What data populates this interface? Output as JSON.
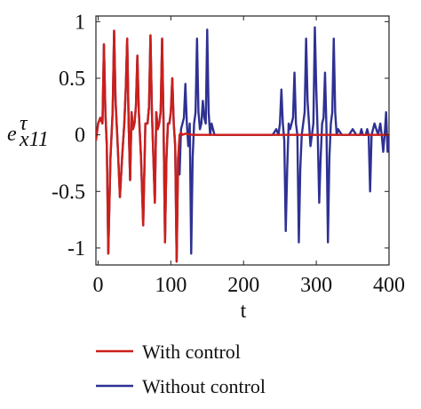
{
  "chart_data": {
    "type": "line",
    "xlabel": "t",
    "ylabel": {
      "base": "e",
      "superscript": "τ",
      "subscript": "x11"
    },
    "xlim": [
      -3,
      400
    ],
    "ylim": [
      -1.15,
      1.05
    ],
    "xticks": [
      0,
      100,
      200,
      300,
      400
    ],
    "xtick_labels": [
      "0",
      "100",
      "200",
      "300",
      "400"
    ],
    "yticks": [
      1,
      0.5,
      0,
      -0.5,
      -1
    ],
    "ytick_labels": [
      "1",
      "0.5",
      "0",
      "-0.5",
      "-1"
    ],
    "grid": false,
    "legend_position": "bottom",
    "series": [
      {
        "name": "Without control",
        "color": "#2e3192",
        "x": [
          -3,
          0,
          3,
          6,
          8,
          10,
          12,
          14,
          17,
          20,
          22,
          24,
          27,
          30,
          33,
          36,
          38,
          40,
          42,
          44,
          46,
          48,
          50,
          52,
          54,
          56,
          59,
          62,
          65,
          68,
          70,
          72,
          74,
          76,
          78,
          80,
          82,
          84,
          86,
          88,
          90,
          92,
          94,
          96,
          98,
          100,
          102,
          104,
          106,
          108,
          110,
          112,
          114,
          116,
          118,
          120,
          122,
          124,
          126,
          128,
          130,
          132,
          134,
          136,
          138,
          140,
          142,
          144,
          146,
          148,
          150,
          152,
          154,
          156,
          158,
          160,
          162,
          170,
          180,
          200,
          220,
          230,
          240,
          245,
          248,
          250,
          252,
          254,
          256,
          258,
          260,
          262,
          264,
          266,
          268,
          270,
          272,
          274,
          276,
          278,
          280,
          282,
          284,
          286,
          288,
          290,
          292,
          294,
          296,
          298,
          300,
          302,
          304,
          306,
          308,
          310,
          312,
          314,
          316,
          318,
          320,
          322,
          324,
          326,
          328,
          330,
          335,
          340,
          345,
          350,
          355,
          360,
          362,
          364,
          366,
          368,
          370,
          372,
          374,
          376,
          378,
          380,
          385,
          388,
          390,
          392,
          394,
          396,
          398,
          400
        ],
        "y": [
          -0.05,
          0.1,
          0.15,
          0.1,
          0.8,
          0.2,
          -0.1,
          -1.05,
          -0.2,
          0.2,
          0.92,
          0.3,
          -0.1,
          -0.55,
          -0.2,
          0.1,
          0.4,
          0.85,
          0.1,
          -0.4,
          0.2,
          0.05,
          0.1,
          0.25,
          0.7,
          0.2,
          -0.2,
          -0.8,
          0.1,
          0.1,
          0.25,
          0.88,
          0.2,
          -0.2,
          -0.6,
          0.2,
          0.05,
          0.1,
          0.2,
          0.85,
          0.1,
          -0.95,
          -0.2,
          0.1,
          0.1,
          0.2,
          0.5,
          0.1,
          -0.1,
          -1.12,
          -0.2,
          -0.35,
          0.05,
          0.1,
          0.15,
          0.45,
          0.1,
          -0.1,
          0.1,
          -1.05,
          -0.2,
          0.1,
          0.2,
          0.85,
          0.2,
          0.05,
          0.1,
          0.3,
          0.15,
          0.1,
          0.93,
          0.2,
          0.0,
          0.1,
          0.05,
          0.0,
          0.0,
          0.0,
          0.0,
          0.0,
          0.0,
          0.0,
          0.0,
          0.05,
          0.0,
          0.1,
          0.4,
          0.1,
          -0.05,
          -0.85,
          -0.3,
          0.1,
          0.05,
          0.1,
          0.15,
          0.55,
          0.1,
          0.0,
          -0.95,
          -0.3,
          0.0,
          0.1,
          0.2,
          0.85,
          0.3,
          0.1,
          -0.1,
          0.0,
          0.1,
          0.95,
          0.4,
          0.0,
          -0.6,
          -0.2,
          0.1,
          0.15,
          0.55,
          0.05,
          -0.95,
          -0.2,
          0.1,
          0.2,
          0.85,
          0.2,
          0.0,
          0.05,
          0.0,
          0.0,
          0.0,
          0.05,
          0.0,
          0.0,
          0.05,
          0.0,
          0.0,
          0.0,
          0.05,
          0.0,
          -0.5,
          0.0,
          0.05,
          0.1,
          0.0,
          0.1,
          0.0,
          -0.15,
          0.0,
          0.2,
          -0.15,
          0.0
        ],
        "note": ""
      },
      {
        "name": "With control",
        "color": "#cc1f1a",
        "x": [
          -3,
          0,
          3,
          6,
          8,
          10,
          12,
          14,
          17,
          20,
          22,
          24,
          27,
          30,
          33,
          36,
          38,
          40,
          42,
          44,
          46,
          48,
          50,
          52,
          54,
          56,
          59,
          62,
          65,
          68,
          70,
          72,
          74,
          76,
          78,
          80,
          82,
          84,
          86,
          88,
          90,
          92,
          94,
          96,
          98,
          100,
          102,
          104,
          106,
          108,
          110,
          112,
          114,
          116,
          120,
          130,
          150,
          175,
          200,
          220,
          240,
          260,
          280,
          300,
          320,
          340,
          360,
          380,
          400
        ],
        "y": [
          -0.05,
          0.1,
          0.15,
          0.1,
          0.8,
          0.2,
          -0.1,
          -1.05,
          -0.2,
          0.2,
          0.92,
          0.3,
          -0.1,
          -0.55,
          -0.2,
          0.1,
          0.4,
          0.85,
          0.1,
          -0.4,
          0.2,
          0.05,
          0.1,
          0.25,
          0.7,
          0.2,
          -0.2,
          -0.8,
          0.1,
          0.1,
          0.25,
          0.88,
          0.2,
          -0.2,
          -0.6,
          0.2,
          0.05,
          0.1,
          0.2,
          0.85,
          0.1,
          -0.95,
          -0.2,
          0.1,
          0.1,
          0.2,
          0.5,
          0.1,
          -0.1,
          -1.12,
          -0.2,
          0.0,
          0.02,
          0.0,
          0.01,
          0.0,
          0.0,
          0.0,
          0.0,
          0.0,
          0.0,
          0.0,
          0.0,
          0.0,
          0.0,
          0.0,
          0.0,
          0.0,
          0.0
        ]
      }
    ]
  },
  "legend": [
    {
      "label": "With control",
      "color": "#cc1f1a"
    },
    {
      "label": "Without control",
      "color": "#2e3192"
    }
  ]
}
